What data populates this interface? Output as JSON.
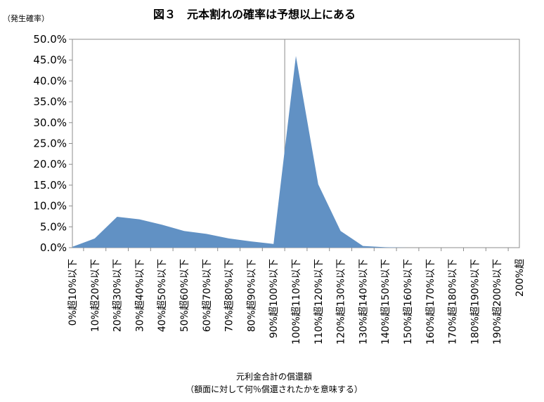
{
  "chart_data": {
    "type": "area",
    "title": "図３　元本割れの確率は予想以上にある",
    "ylabel": "（発生確率）",
    "xlabel": "元利金合計の償還額",
    "xlabel_note": "（額面に対して何％償還されたかを意味する）",
    "ylim": [
      0,
      50
    ],
    "y_ticks": [
      "0.0%",
      "5.0%",
      "10.0%",
      "15.0%",
      "20.0%",
      "25.0%",
      "30.0%",
      "35.0%",
      "40.0%",
      "45.0%",
      "50.0%"
    ],
    "categories": [
      "0%超10%以下",
      "10%超20%以下",
      "20%超30%以下",
      "30%超40%以下",
      "40%超50%以下",
      "50%超60%以下",
      "60%超70%以下",
      "70%超80%以下",
      "80%超90%以下",
      "90%超100%以下",
      "100%超110%以下",
      "110%超120%以下",
      "120%超130%以下",
      "130%超140%以下",
      "140%超150%以下",
      "150%超160%以下",
      "160%超170%以下",
      "170%超180%以下",
      "180%超190%以下",
      "190%超200%以下",
      "200%超"
    ],
    "values": [
      0.2,
      2.2,
      7.4,
      6.8,
      5.5,
      4.0,
      3.3,
      2.2,
      1.5,
      0.9,
      46.0,
      15.2,
      4.0,
      0.4,
      0.1,
      0,
      0,
      0,
      0,
      0,
      0
    ],
    "series_color": "#6191c4",
    "grid": false
  }
}
